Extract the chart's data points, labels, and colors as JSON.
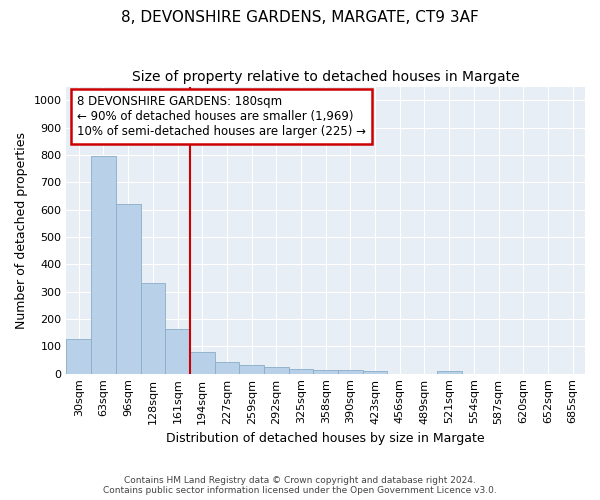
{
  "title": "8, DEVONSHIRE GARDENS, MARGATE, CT9 3AF",
  "subtitle": "Size of property relative to detached houses in Margate",
  "xlabel": "Distribution of detached houses by size in Margate",
  "ylabel": "Number of detached properties",
  "bar_labels": [
    "30sqm",
    "63sqm",
    "96sqm",
    "128sqm",
    "161sqm",
    "194sqm",
    "227sqm",
    "259sqm",
    "292sqm",
    "325sqm",
    "358sqm",
    "390sqm",
    "423sqm",
    "456sqm",
    "489sqm",
    "521sqm",
    "554sqm",
    "587sqm",
    "620sqm",
    "652sqm",
    "685sqm"
  ],
  "bar_values": [
    125,
    795,
    620,
    330,
    165,
    80,
    42,
    30,
    25,
    17,
    13,
    13,
    10,
    0,
    0,
    8,
    0,
    0,
    0,
    0,
    0
  ],
  "bar_color": "#b8d0e8",
  "bar_edge_color": "#8aaec8",
  "vline_x_index": 5,
  "vline_color": "#cc0000",
  "annotation_text": "8 DEVONSHIRE GARDENS: 180sqm\n← 90% of detached houses are smaller (1,969)\n10% of semi-detached houses are larger (225) →",
  "annotation_box_color": "#cc0000",
  "ylim": [
    0,
    1050
  ],
  "yticks": [
    0,
    100,
    200,
    300,
    400,
    500,
    600,
    700,
    800,
    900,
    1000
  ],
  "fig_bg_color": "#ffffff",
  "plot_bg_color": "#e8eef5",
  "grid_color": "#ffffff",
  "footer_line1": "Contains HM Land Registry data © Crown copyright and database right 2024.",
  "footer_line2": "Contains public sector information licensed under the Open Government Licence v3.0.",
  "title_fontsize": 11,
  "subtitle_fontsize": 10,
  "xlabel_fontsize": 9,
  "ylabel_fontsize": 9,
  "tick_fontsize": 8,
  "annotation_fontsize": 8.5
}
